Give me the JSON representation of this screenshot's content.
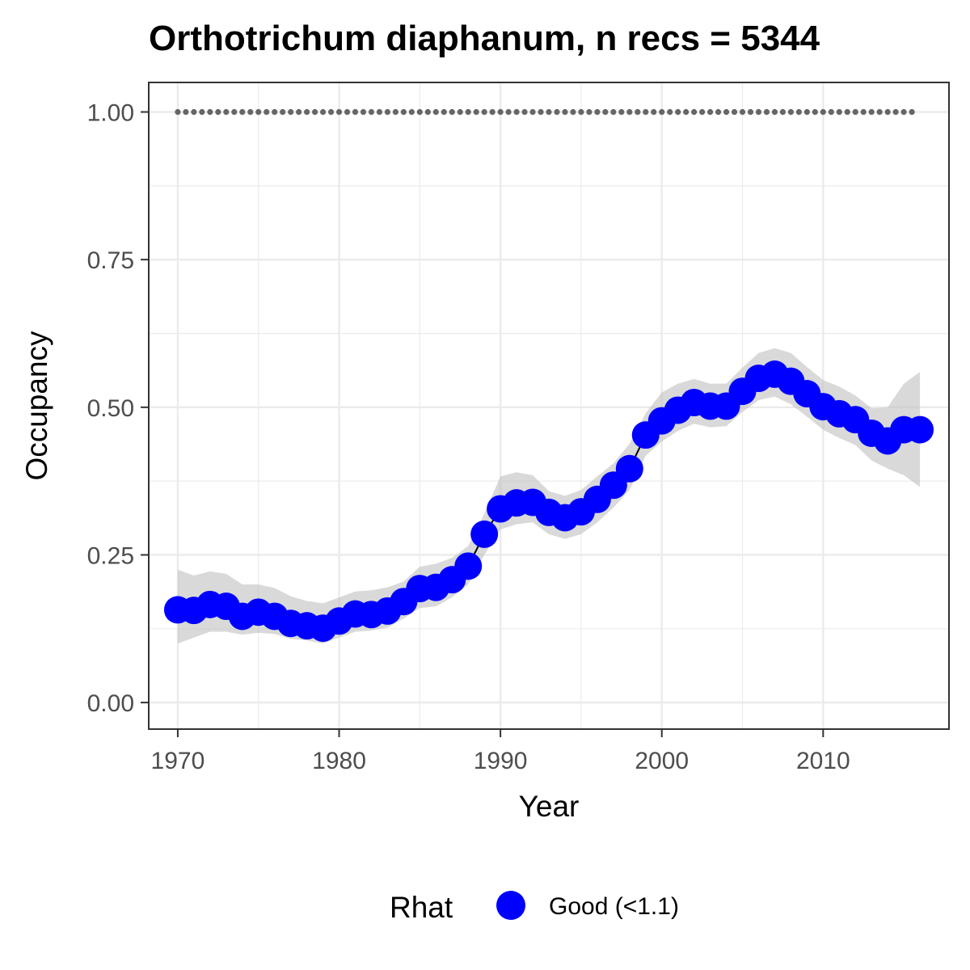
{
  "chart_data": {
    "type": "line",
    "title": "Orthotrichum diaphanum, n recs = 5344",
    "xlabel": "Year",
    "ylabel": "Occupancy",
    "xlim": [
      1968.2,
      2017.8
    ],
    "ylim": [
      -0.045,
      1.05
    ],
    "x_ticks": [
      1970,
      1980,
      1990,
      2000,
      2010
    ],
    "y_ticks": [
      0.0,
      0.25,
      0.5,
      0.75,
      1.0
    ],
    "y_tick_labels": [
      "0.00",
      "0.25",
      "0.50",
      "0.75",
      "1.00"
    ],
    "grid": true,
    "legend": {
      "title": "Rhat",
      "position": "bottom",
      "entries": [
        {
          "label": "Good (<1.1)",
          "color": "#0000ff"
        }
      ]
    },
    "colors": {
      "points": "#0000ff",
      "ribbon": "#bfbfbf",
      "line": "#000000",
      "reference_dots": "#666666",
      "grid": "#ebebeb",
      "panel_border": "#333333"
    },
    "reference_line": {
      "y": 1.0,
      "x": [
        1970,
        1971,
        1972,
        1973,
        1974,
        1975,
        1976,
        1977,
        1978,
        1979,
        1980,
        1981,
        1982,
        1983,
        1984,
        1985,
        1986,
        1987,
        1988,
        1989,
        1990,
        1991,
        1992,
        1993,
        1994,
        1995,
        1996,
        1997,
        1998,
        1999,
        2000,
        2001,
        2002,
        2003,
        2004,
        2005,
        2006,
        2007,
        2008,
        2009,
        2010,
        2011,
        2012,
        2013,
        2014,
        2015
      ]
    },
    "series": [
      {
        "x": [
          1970,
          1971,
          1972,
          1973,
          1974,
          1975,
          1976,
          1977,
          1978,
          1979,
          1980,
          1981,
          1982,
          1983,
          1984,
          1985,
          1986,
          1987,
          1988,
          1989,
          1990,
          1991,
          1992,
          1993,
          1994,
          1995,
          1996,
          1997,
          1998,
          1999,
          2000,
          2001,
          2002,
          2003,
          2004,
          2005,
          2006,
          2007,
          2008,
          2009,
          2010,
          2011,
          2012,
          2013,
          2014,
          2015,
          2016
        ],
        "values": [
          0.157,
          0.156,
          0.166,
          0.163,
          0.146,
          0.153,
          0.146,
          0.134,
          0.13,
          0.126,
          0.138,
          0.15,
          0.149,
          0.155,
          0.171,
          0.193,
          0.195,
          0.208,
          0.231,
          0.285,
          0.328,
          0.338,
          0.339,
          0.322,
          0.313,
          0.323,
          0.344,
          0.368,
          0.396,
          0.453,
          0.477,
          0.495,
          0.508,
          0.502,
          0.502,
          0.527,
          0.549,
          0.556,
          0.544,
          0.523,
          0.501,
          0.489,
          0.479,
          0.456,
          0.443,
          0.462,
          0.462
        ],
        "lower": [
          0.1,
          0.11,
          0.12,
          0.12,
          0.115,
          0.118,
          0.116,
          0.108,
          0.105,
          0.1,
          0.11,
          0.12,
          0.122,
          0.127,
          0.142,
          0.16,
          0.163,
          0.178,
          0.2,
          0.25,
          0.293,
          0.302,
          0.305,
          0.285,
          0.277,
          0.285,
          0.305,
          0.33,
          0.36,
          0.418,
          0.442,
          0.46,
          0.472,
          0.466,
          0.468,
          0.492,
          0.512,
          0.518,
          0.505,
          0.484,
          0.462,
          0.448,
          0.436,
          0.41,
          0.396,
          0.385,
          0.365
        ],
        "upper": [
          0.225,
          0.215,
          0.222,
          0.218,
          0.2,
          0.2,
          0.194,
          0.18,
          0.172,
          0.168,
          0.178,
          0.188,
          0.19,
          0.195,
          0.205,
          0.23,
          0.235,
          0.245,
          0.265,
          0.32,
          0.383,
          0.39,
          0.385,
          0.358,
          0.35,
          0.36,
          0.383,
          0.405,
          0.438,
          0.49,
          0.525,
          0.54,
          0.548,
          0.54,
          0.54,
          0.567,
          0.592,
          0.6,
          0.592,
          0.568,
          0.546,
          0.535,
          0.52,
          0.498,
          0.5,
          0.54,
          0.56
        ]
      }
    ]
  }
}
